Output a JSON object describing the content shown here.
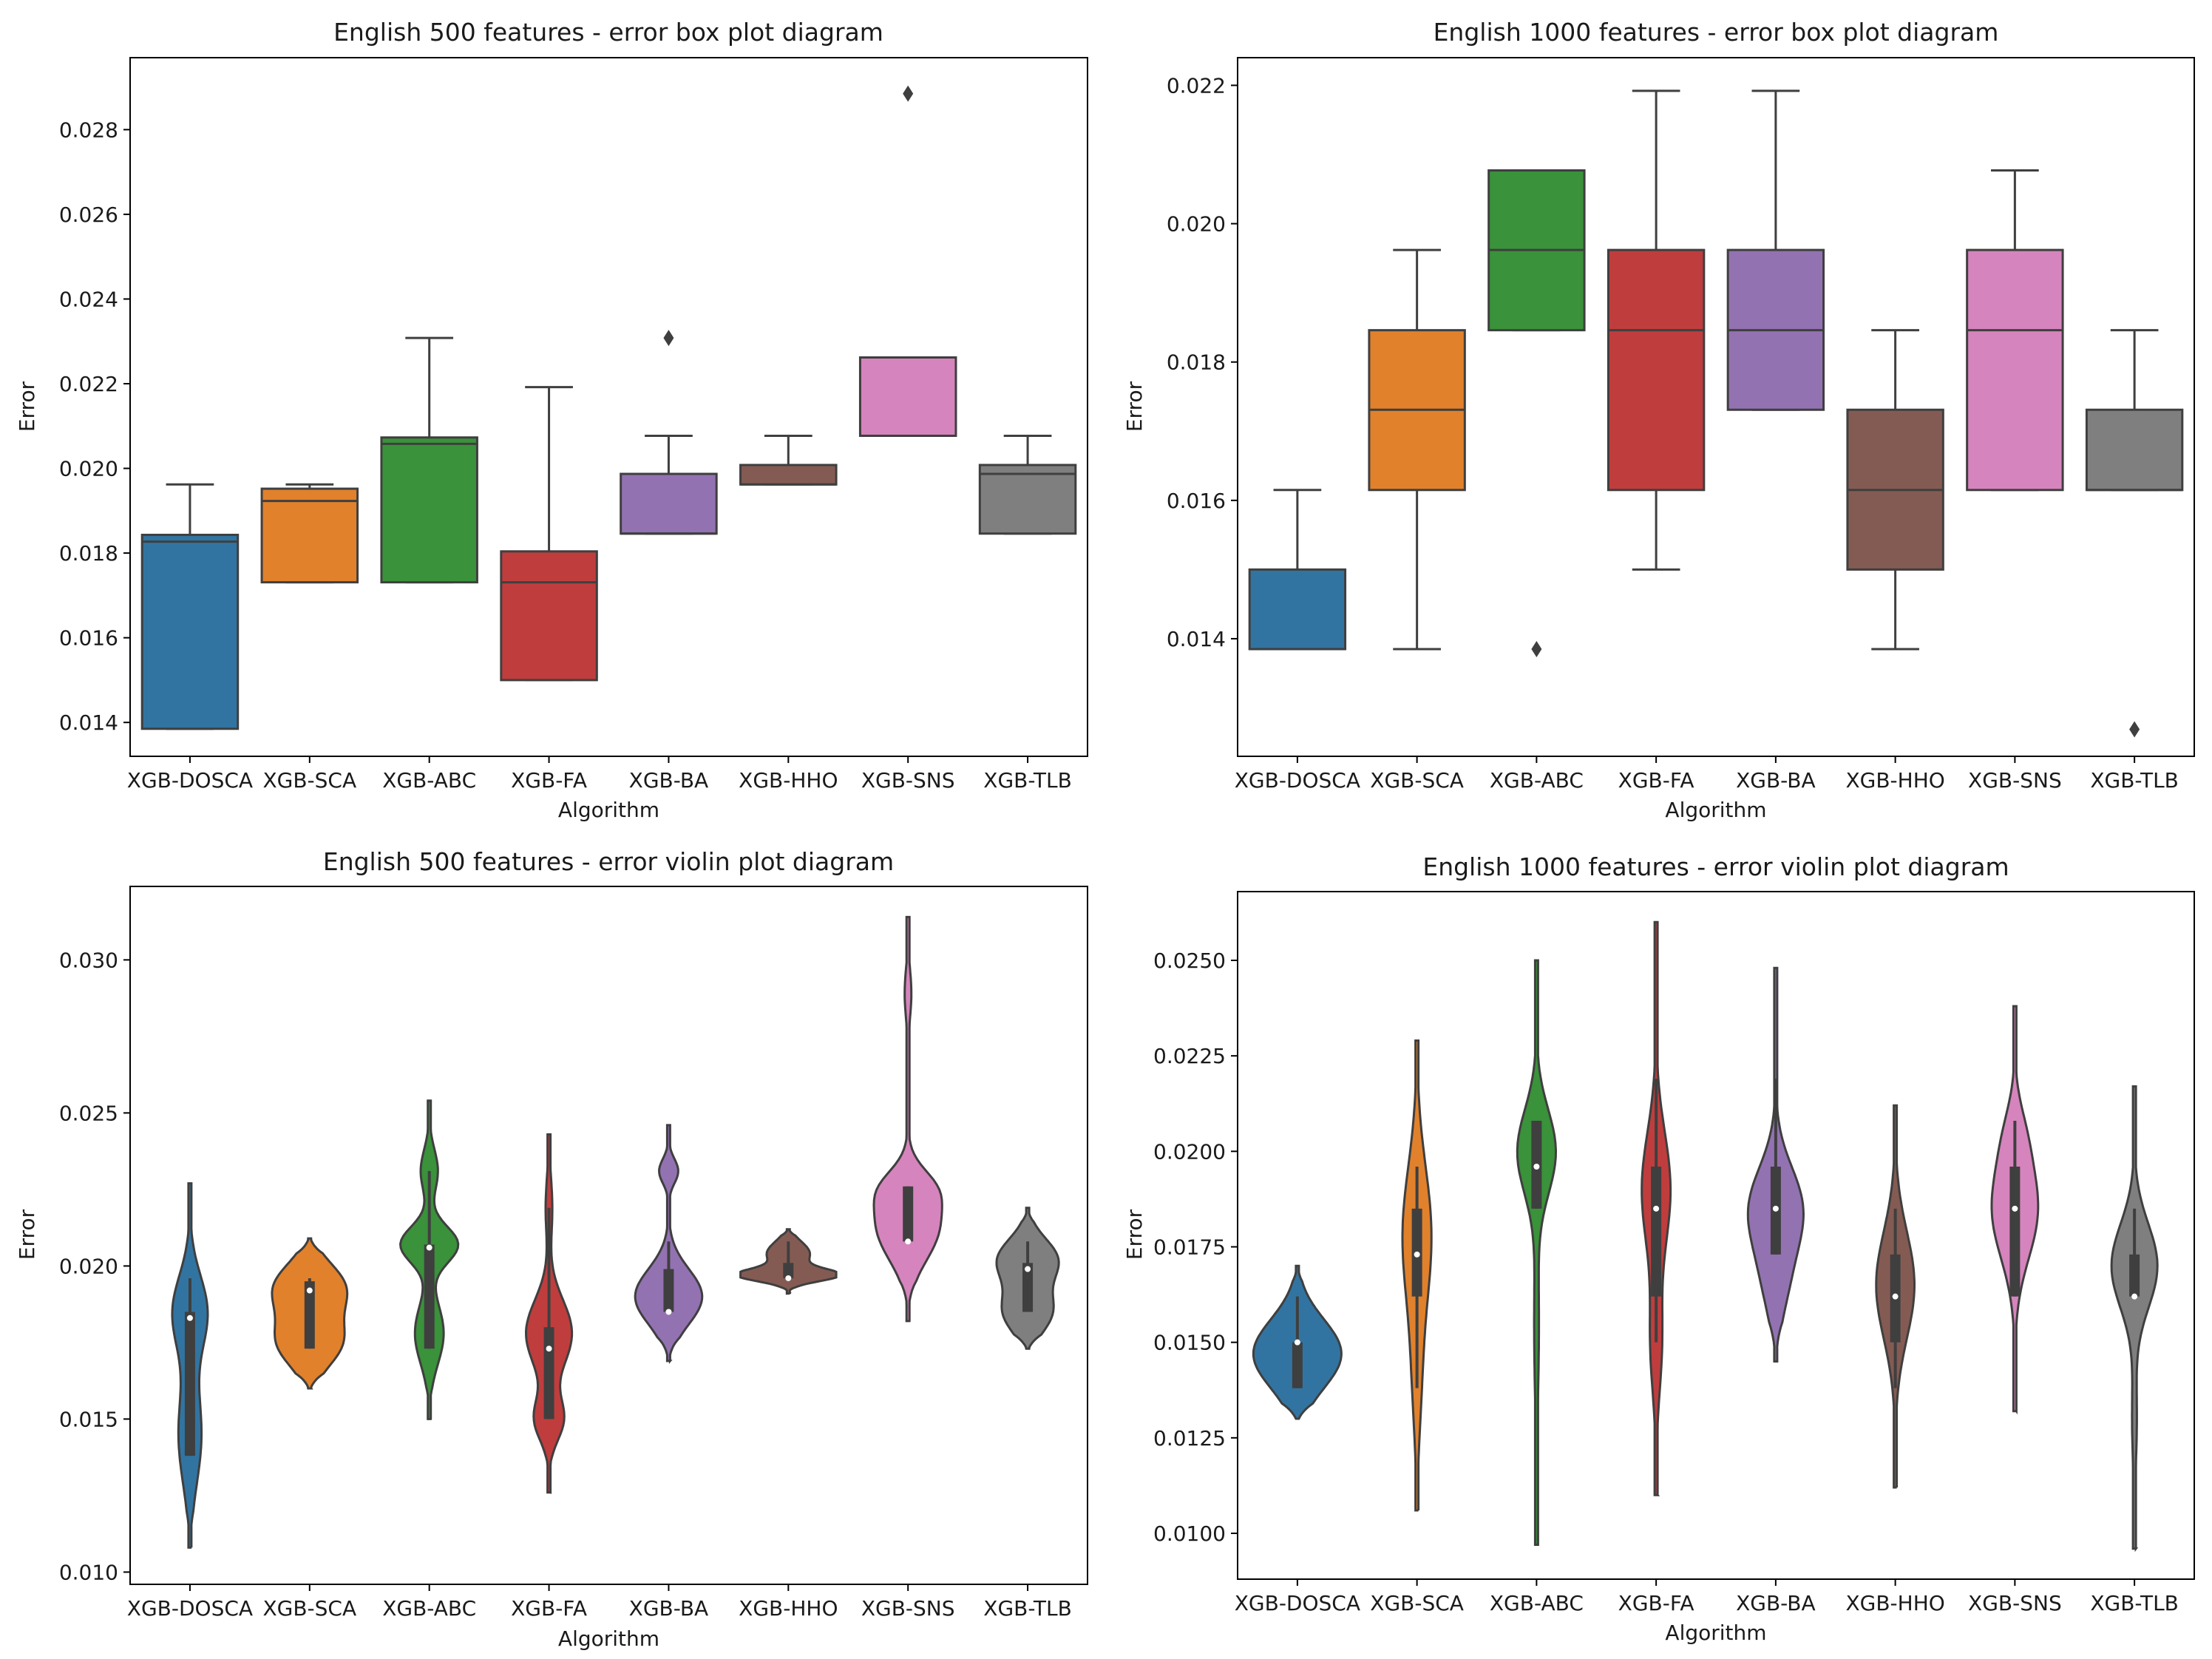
{
  "figure": {
    "background": "#ffffff"
  },
  "chart_data": [
    {
      "type": "box",
      "title": "English 500 features - error box plot diagram",
      "xlabel": "Algorithm",
      "ylabel": "Error",
      "ylim": [
        0.0132,
        0.0297
      ],
      "yticks": [
        0.014,
        0.016,
        0.018,
        0.02,
        0.022,
        0.024,
        0.026,
        0.028
      ],
      "ytick_labels": [
        "0.014",
        "0.016",
        "0.018",
        "0.020",
        "0.022",
        "0.024",
        "0.026",
        "0.028"
      ],
      "categories": [
        "XGB-DOSCA",
        "XGB-SCA",
        "XGB-ABC",
        "XGB-FA",
        "XGB-BA",
        "XGB-HHO",
        "XGB-SNS",
        "XGB-TLB"
      ],
      "colors": [
        "#3274a1",
        "#e1812c",
        "#3a923a",
        "#c03d3e",
        "#9372b2",
        "#845b53",
        "#d684bd",
        "#7f7f7f"
      ],
      "boxes": [
        {
          "whislo": 0.01385,
          "q1": 0.01385,
          "med": 0.01827,
          "q3": 0.01843,
          "whishi": 0.01962,
          "fliers": []
        },
        {
          "whislo": 0.01731,
          "q1": 0.01731,
          "med": 0.01923,
          "q3": 0.01952,
          "whishi": 0.01962,
          "fliers": []
        },
        {
          "whislo": 0.01731,
          "q1": 0.01731,
          "med": 0.02058,
          "q3": 0.02073,
          "whishi": 0.02308,
          "fliers": []
        },
        {
          "whislo": 0.015,
          "q1": 0.015,
          "med": 0.01731,
          "q3": 0.01804,
          "whishi": 0.02192,
          "fliers": []
        },
        {
          "whislo": 0.01846,
          "q1": 0.01846,
          "med": 0.01846,
          "q3": 0.01987,
          "whishi": 0.02077,
          "fliers": [
            0.02308
          ]
        },
        {
          "whislo": 0.01962,
          "q1": 0.01962,
          "med": 0.01962,
          "q3": 0.02008,
          "whishi": 0.02077,
          "fliers": []
        },
        {
          "whislo": 0.02077,
          "q1": 0.02077,
          "med": 0.02077,
          "q3": 0.02262,
          "whishi": 0.02262,
          "fliers": [
            0.02885
          ]
        },
        {
          "whislo": 0.01846,
          "q1": 0.01846,
          "med": 0.01987,
          "q3": 0.02008,
          "whishi": 0.02077,
          "fliers": []
        }
      ]
    },
    {
      "type": "box",
      "title": "English 1000 features - error box plot diagram",
      "xlabel": "Algorithm",
      "ylabel": "Error",
      "ylim": [
        0.0123,
        0.0224
      ],
      "yticks": [
        0.014,
        0.016,
        0.018,
        0.02,
        0.022
      ],
      "ytick_labels": [
        "0.014",
        "0.016",
        "0.018",
        "0.020",
        "0.022"
      ],
      "categories": [
        "XGB-DOSCA",
        "XGB-SCA",
        "XGB-ABC",
        "XGB-FA",
        "XGB-BA",
        "XGB-HHO",
        "XGB-SNS",
        "XGB-TLB"
      ],
      "colors": [
        "#3274a1",
        "#e1812c",
        "#3a923a",
        "#c03d3e",
        "#9372b2",
        "#845b53",
        "#d684bd",
        "#7f7f7f"
      ],
      "boxes": [
        {
          "whislo": 0.01385,
          "q1": 0.01385,
          "med": 0.01385,
          "q3": 0.015,
          "whishi": 0.01615,
          "fliers": []
        },
        {
          "whislo": 0.01385,
          "q1": 0.01615,
          "med": 0.01731,
          "q3": 0.01846,
          "whishi": 0.01962,
          "fliers": []
        },
        {
          "whislo": 0.01846,
          "q1": 0.01846,
          "med": 0.01962,
          "q3": 0.02077,
          "whishi": 0.02077,
          "fliers": [
            0.01385
          ]
        },
        {
          "whislo": 0.015,
          "q1": 0.01615,
          "med": 0.01846,
          "q3": 0.01962,
          "whishi": 0.02192,
          "fliers": []
        },
        {
          "whislo": 0.01731,
          "q1": 0.01731,
          "med": 0.01846,
          "q3": 0.01962,
          "whishi": 0.02192,
          "fliers": []
        },
        {
          "whislo": 0.01385,
          "q1": 0.015,
          "med": 0.01615,
          "q3": 0.01731,
          "whishi": 0.01846,
          "fliers": []
        },
        {
          "whislo": 0.01615,
          "q1": 0.01615,
          "med": 0.01846,
          "q3": 0.01962,
          "whishi": 0.02077,
          "fliers": []
        },
        {
          "whislo": 0.01615,
          "q1": 0.01615,
          "med": 0.01615,
          "q3": 0.01731,
          "whishi": 0.01846,
          "fliers": [
            0.01269
          ]
        }
      ]
    },
    {
      "type": "violin",
      "title": "English 500 features - error violin plot diagram",
      "xlabel": "Algorithm",
      "ylabel": "Error",
      "ylim": [
        0.0096,
        0.0324
      ],
      "yticks": [
        0.01,
        0.015,
        0.02,
        0.025,
        0.03
      ],
      "ytick_labels": [
        "0.010",
        "0.015",
        "0.020",
        "0.025",
        "0.030"
      ],
      "categories": [
        "XGB-DOSCA",
        "XGB-SCA",
        "XGB-ABC",
        "XGB-FA",
        "XGB-BA",
        "XGB-HHO",
        "XGB-SNS",
        "XGB-TLB"
      ],
      "colors": [
        "#3274a1",
        "#e1812c",
        "#3a923a",
        "#c03d3e",
        "#9372b2",
        "#845b53",
        "#d684bd",
        "#7f7f7f"
      ],
      "violins": [
        {
          "min": 0.0108,
          "max": 0.0227,
          "q1": 0.0138,
          "med": 0.0183,
          "q3": 0.0185,
          "wlo": 0.0138,
          "whi": 0.0196,
          "modes": [
            [
              0.0185,
              0.0012,
              0.36
            ],
            [
              0.0145,
              0.0016,
              0.24
            ]
          ]
        },
        {
          "min": 0.016,
          "max": 0.0209,
          "q1": 0.0173,
          "med": 0.0192,
          "q3": 0.0195,
          "wlo": 0.0173,
          "whi": 0.0196,
          "modes": [
            [
              0.0193,
              0.0008,
              0.72
            ],
            [
              0.0175,
              0.0008,
              0.65
            ]
          ]
        },
        {
          "min": 0.015,
          "max": 0.0254,
          "q1": 0.0173,
          "med": 0.0206,
          "q3": 0.0207,
          "wlo": 0.0173,
          "whi": 0.0231,
          "modes": [
            [
              0.0207,
              0.0006,
              0.6
            ],
            [
              0.0178,
              0.001,
              0.3
            ],
            [
              0.0231,
              0.0007,
              0.18
            ]
          ]
        },
        {
          "min": 0.0126,
          "max": 0.0243,
          "q1": 0.015,
          "med": 0.0173,
          "q3": 0.018,
          "wlo": 0.015,
          "whi": 0.0219,
          "modes": [
            [
              0.0178,
              0.0011,
              0.48
            ],
            [
              0.015,
              0.0007,
              0.3
            ],
            [
              0.0219,
              0.001,
              0.07
            ]
          ]
        },
        {
          "min": 0.0169,
          "max": 0.0246,
          "q1": 0.0185,
          "med": 0.0185,
          "q3": 0.0199,
          "wlo": 0.0185,
          "whi": 0.0208,
          "modes": [
            [
              0.019,
              0.0009,
              0.7
            ],
            [
              0.0231,
              0.0004,
              0.2
            ]
          ]
        },
        {
          "min": 0.0191,
          "max": 0.0212,
          "q1": 0.0196,
          "med": 0.0196,
          "q3": 0.0201,
          "wlo": 0.0196,
          "whi": 0.0208,
          "modes": [
            [
              0.0197,
              0.0002,
              1.0
            ],
            [
              0.0204,
              0.0004,
              0.45
            ]
          ]
        },
        {
          "min": 0.0182,
          "max": 0.0314,
          "q1": 0.0208,
          "med": 0.0208,
          "q3": 0.0226,
          "wlo": 0.0208,
          "whi": 0.0226,
          "modes": [
            [
              0.0213,
              0.0011,
              0.65
            ],
            [
              0.0226,
              0.0006,
              0.3
            ],
            [
              0.0289,
              0.0008,
              0.07
            ]
          ]
        },
        {
          "min": 0.0173,
          "max": 0.0219,
          "q1": 0.0185,
          "med": 0.0199,
          "q3": 0.0201,
          "wlo": 0.0185,
          "whi": 0.0208,
          "modes": [
            [
              0.0202,
              0.0007,
              0.62
            ],
            [
              0.0185,
              0.0007,
              0.5
            ]
          ]
        }
      ]
    },
    {
      "type": "violin",
      "title": "English 1000 features - error violin plot diagram",
      "xlabel": "Algorithm",
      "ylabel": "Error",
      "ylim": [
        0.0088,
        0.0268
      ],
      "yticks": [
        0.01,
        0.0125,
        0.015,
        0.0175,
        0.02,
        0.0225,
        0.025
      ],
      "ytick_labels": [
        "0.0100",
        "0.0125",
        "0.0150",
        "0.0175",
        "0.0200",
        "0.0225",
        "0.0250"
      ],
      "categories": [
        "XGB-DOSCA",
        "XGB-SCA",
        "XGB-ABC",
        "XGB-FA",
        "XGB-BA",
        "XGB-HHO",
        "XGB-SNS",
        "XGB-TLB"
      ],
      "colors": [
        "#3274a1",
        "#e1812c",
        "#3a923a",
        "#c03d3e",
        "#9372b2",
        "#845b53",
        "#d684bd",
        "#7f7f7f"
      ],
      "violins": [
        {
          "min": 0.013,
          "max": 0.017,
          "q1": 0.0138,
          "med": 0.015,
          "q3": 0.015,
          "wlo": 0.0138,
          "whi": 0.0162,
          "modes": [
            [
              0.0147,
              0.0009,
              0.92
            ]
          ]
        },
        {
          "min": 0.0106,
          "max": 0.0229,
          "q1": 0.0162,
          "med": 0.0173,
          "q3": 0.0185,
          "wlo": 0.0138,
          "whi": 0.0196,
          "modes": [
            [
              0.0178,
              0.0018,
              0.3
            ],
            [
              0.014,
              0.0015,
              0.08
            ]
          ]
        },
        {
          "min": 0.0097,
          "max": 0.025,
          "q1": 0.0185,
          "med": 0.0196,
          "q3": 0.0208,
          "wlo": 0.0185,
          "whi": 0.0208,
          "modes": [
            [
              0.02,
              0.0011,
              0.4
            ],
            [
              0.0155,
              0.002,
              0.05
            ]
          ]
        },
        {
          "min": 0.011,
          "max": 0.026,
          "q1": 0.0162,
          "med": 0.0185,
          "q3": 0.0196,
          "wlo": 0.015,
          "whi": 0.0219,
          "modes": [
            [
              0.019,
              0.0015,
              0.3
            ],
            [
              0.015,
              0.0013,
              0.12
            ]
          ]
        },
        {
          "min": 0.0145,
          "max": 0.0248,
          "q1": 0.0173,
          "med": 0.0185,
          "q3": 0.0196,
          "wlo": 0.0173,
          "whi": 0.0219,
          "modes": [
            [
              0.0185,
              0.0011,
              0.55
            ],
            [
              0.0165,
              0.001,
              0.2
            ]
          ]
        },
        {
          "min": 0.0112,
          "max": 0.0212,
          "q1": 0.015,
          "med": 0.0162,
          "q3": 0.0173,
          "wlo": 0.0138,
          "whi": 0.0185,
          "modes": [
            [
              0.0165,
              0.0014,
              0.4
            ]
          ]
        },
        {
          "min": 0.0132,
          "max": 0.0238,
          "q1": 0.0162,
          "med": 0.0185,
          "q3": 0.0196,
          "wlo": 0.0162,
          "whi": 0.0208,
          "modes": [
            [
              0.0185,
              0.0013,
              0.48
            ],
            [
              0.0205,
              0.0008,
              0.12
            ]
          ]
        },
        {
          "min": 0.0096,
          "max": 0.0217,
          "q1": 0.0162,
          "med": 0.0162,
          "q3": 0.0173,
          "wlo": 0.0162,
          "whi": 0.0185,
          "modes": [
            [
              0.017,
              0.0011,
              0.48
            ],
            [
              0.013,
              0.0012,
              0.05
            ]
          ]
        }
      ]
    }
  ]
}
